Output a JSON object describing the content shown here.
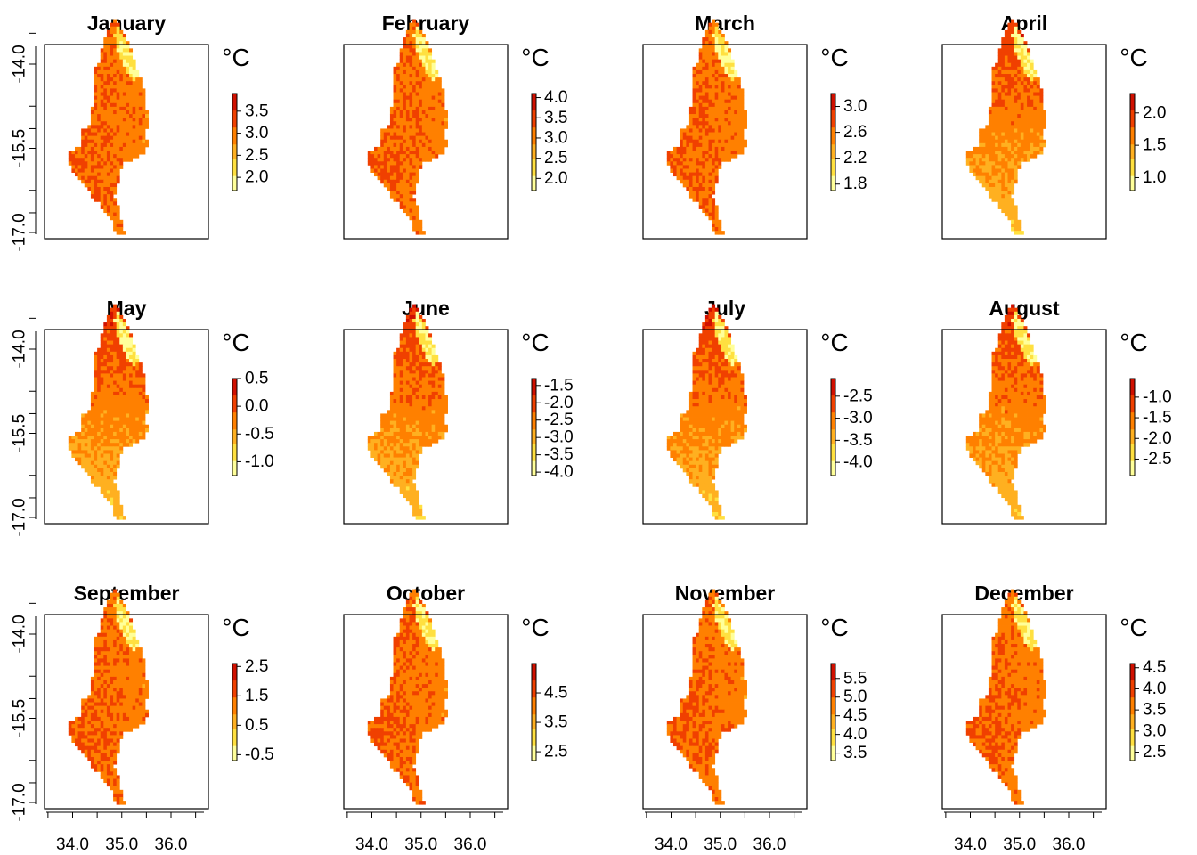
{
  "chart_data": {
    "type": "heatmap",
    "layout": "3 rows x 4 columns of small multiples",
    "palette": "heat (yellow = low, red = high)",
    "colors": [
      "#ffff9a",
      "#ffe040",
      "#ffb020",
      "#ff8000",
      "#f04000",
      "#d01000"
    ],
    "y_tick_labels": [
      "-14.0",
      "-15.5",
      "-17.0"
    ],
    "y_ticks": [
      -14.0,
      -15.5,
      -17.0
    ],
    "x_tick_labels": [
      "34.0",
      "35.0",
      "36.0"
    ],
    "x_ticks": [
      34.0,
      35.0,
      36.0
    ],
    "x_minor_ticks": [
      33.5,
      34.5,
      35.5,
      36.5
    ],
    "xlim": [
      33.35,
      36.75
    ],
    "ylim": [
      -17.05,
      -13.25
    ],
    "panels": [
      {
        "title": "January",
        "unit": "°C",
        "ticks": [
          3.5,
          3.0,
          2.5,
          2.0
        ],
        "tick_labels": [
          "3.5",
          "3.0",
          "2.5",
          "2.0"
        ],
        "zlim": [
          1.7,
          3.9
        ]
      },
      {
        "title": "February",
        "unit": "°C",
        "ticks": [
          4.0,
          3.5,
          3.0,
          2.5,
          2.0
        ],
        "tick_labels": [
          "4.0",
          "3.5",
          "3.0",
          "2.5",
          "2.0"
        ],
        "zlim": [
          1.7,
          4.1
        ]
      },
      {
        "title": "March",
        "unit": "°C",
        "ticks": [
          3.0,
          2.6,
          2.2,
          1.8
        ],
        "tick_labels": [
          "3.0",
          "2.6",
          "2.2",
          "1.8"
        ],
        "zlim": [
          1.7,
          3.2
        ]
      },
      {
        "title": "April",
        "unit": "°C",
        "ticks": [
          2.0,
          1.5,
          1.0
        ],
        "tick_labels": [
          "2.0",
          "1.5",
          "1.0"
        ],
        "zlim": [
          0.8,
          2.3
        ]
      },
      {
        "title": "May",
        "unit": "°C",
        "ticks": [
          0.5,
          0.0,
          -0.5,
          -1.0
        ],
        "tick_labels": [
          "0.5",
          "0.0",
          "-0.5",
          "-1.0"
        ],
        "zlim": [
          -1.25,
          0.5
        ]
      },
      {
        "title": "June",
        "unit": "°C",
        "ticks": [
          -1.5,
          -2.0,
          -2.5,
          -3.0,
          -3.5,
          -4.0
        ],
        "tick_labels": [
          "-1.5",
          "-2.0",
          "-2.5",
          "-3.0",
          "-3.5",
          "-4.0"
        ],
        "zlim": [
          -4.1,
          -1.3
        ]
      },
      {
        "title": "July",
        "unit": "°C",
        "ticks": [
          -2.5,
          -3.0,
          -3.5,
          -4.0
        ],
        "tick_labels": [
          "-2.5",
          "-3.0",
          "-3.5",
          "-4.0"
        ],
        "zlim": [
          -4.3,
          -2.1
        ]
      },
      {
        "title": "August",
        "unit": "°C",
        "ticks": [
          -1.0,
          -1.5,
          -2.0,
          -2.5
        ],
        "tick_labels": [
          "-1.0",
          "-1.5",
          "-2.0",
          "-2.5"
        ],
        "zlim": [
          -2.9,
          -0.55
        ]
      },
      {
        "title": "September",
        "unit": "°C",
        "ticks": [
          2.5,
          1.5,
          0.5,
          -0.5
        ],
        "tick_labels": [
          "2.5",
          "1.5",
          "0.5",
          "-0.5"
        ],
        "zlim": [
          -0.7,
          2.6
        ]
      },
      {
        "title": "October",
        "unit": "°C",
        "ticks": [
          4.5,
          3.5,
          2.5
        ],
        "tick_labels": [
          "4.5",
          "3.5",
          "2.5"
        ],
        "zlim": [
          2.2,
          5.5
        ]
      },
      {
        "title": "November",
        "unit": "°C",
        "ticks": [
          5.5,
          5.0,
          4.5,
          4.0,
          3.5
        ],
        "tick_labels": [
          "5.5",
          "5.0",
          "4.5",
          "4.0",
          "3.5"
        ],
        "zlim": [
          3.3,
          5.9
        ]
      },
      {
        "title": "December",
        "unit": "°C",
        "ticks": [
          4.5,
          4.0,
          3.5,
          3.0,
          2.5
        ],
        "tick_labels": [
          "4.5",
          "4.0",
          "3.5",
          "3.0",
          "2.5"
        ],
        "zlim": [
          2.3,
          4.6
        ]
      }
    ]
  }
}
